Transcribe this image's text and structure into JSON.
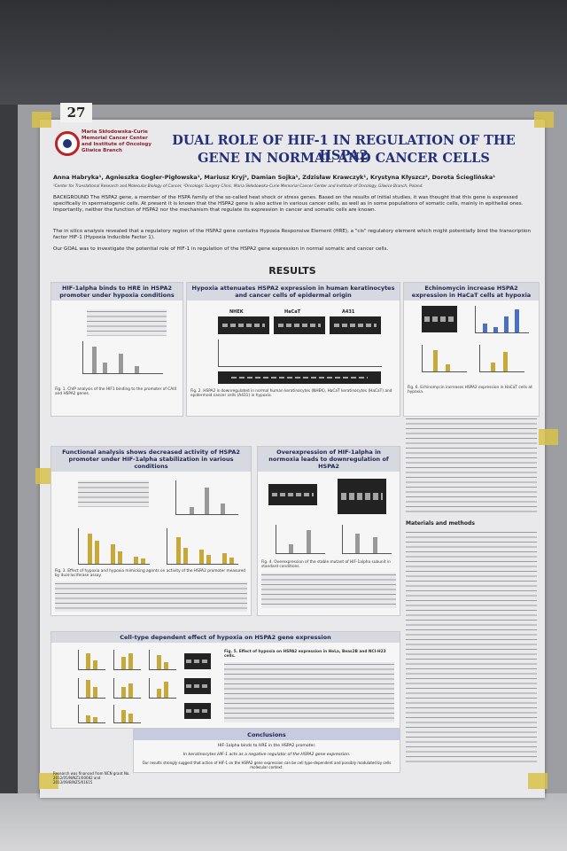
{
  "board_number": "27",
  "header": {
    "institute": "Maria Skłodowska-Curie Memorial Cancer Center and Institute of Oncology Gliwice Branch",
    "title_line1": "DUAL ROLE OF HIF-1 IN REGULATION OF THE HSPA2",
    "title_line2": "GENE IN NORMAL AND CANCER CELLS",
    "authors": "Anna Habryka¹, Agnieszka Gogler-Pigłowska¹, Mariusz Kryj², Damian Sojka¹, Zdzisław Krawczyk¹, Krystyna Kłyszcz², Dorota Ścieglińska¹",
    "affiliations": "¹Center for Translational Research and Molecular Biology of Cancer, ²Oncologic Surgery Clinic, Maria Skłodowska-Curie Memorial Cancer Center and Institute of Oncology, Gliwice Branch, Poland."
  },
  "intro": {
    "background": "BACKGROUND The HSPA2 gene, a member of the HSPA family of the so-called heat shock or stress genes. Based on the results of initial studies, it was thought that this gene is expressed specifically in spermatogenic cells. At present it is known that the HSPA2 gene is also active in various cancer cells, as well as in some populations of somatic cells, mainly in epithelial ones. Importantly, neither the function of HSPA2 nor the mechanism that regulate its expression in cancer and somatic cells are known.",
    "in_silico": "The in silico analysis revealed that a regulatory region of the HSPA2 gene contains Hypoxia Responsive Element (HRE), a \"cis\" regulatory element which might potentially bind the transcription factor HIF-1 (Hypoxia Inducible Factor 1).",
    "goal": "Our GOAL was to investigate the potential role of HIF-1 in regulation of the HSPA2 gene expression in normal somatic and cancer cells."
  },
  "results_heading": "RESULTS",
  "panels": [
    {
      "heading": "HIF-1alpha binds to HRE in HSPA2 promoter under hypoxia conditions",
      "caption": "Fig. 1. ChIP analysis of the HIF1 binding to the promoter of CAIX and HSPA2 genes."
    },
    {
      "heading": "Hypoxia attenuates HSPA2 expression in human keratinocytes and cancer cells of epidermal origin",
      "caption": "Fig. 2. HSPA2 is downregulated in normal human keratinocytes (NHEK), HaCaT keratinocytes (HaCaT) and epidermoid cancer cells (A431) in hypoxia.",
      "columns": [
        "NHEK",
        "HaCaT",
        "A431"
      ]
    },
    {
      "heading": "Echinomycin increase HSPA2 expression in HaCaT cells at hypoxia",
      "caption": "Fig. 6. Echinomycin increases HSPA2 expression in HaCaT cells at hypoxia."
    },
    {
      "heading": "Functional analysis shows decreased activity of HSPA2 promoter under HIF-1alpha stabilization in various conditions",
      "caption": "Fig. 3. Effect of hypoxia and hypoxia mimicking agents on activity of the HSPA2 promoter measured by dual-luciferase assay."
    },
    {
      "heading": "Overexpression of HIF-1alpha in normoxia leads to downregulation of HSPA2",
      "caption": "Fig. 4. Overexpression of the stable mutant of HIF-1alpha subunit in standard conditions."
    },
    {
      "heading": "Cell-type dependent effect of hypoxia on HSPA2 gene expression",
      "caption": "Fig. 5. Effect of hypoxia on HSPA2 expression in HeLa, Beas2B and NCI-H23 cells."
    }
  ],
  "methods_heading": "Materials and methods",
  "conclusions": {
    "heading": "Conclusions",
    "items": [
      "HIF-1alpha binds to HRE in the HSPA2 promoter.",
      "In keratinocytes HIF-1 acts as a negative regulator of the HSPA2 gene expression.",
      "Our results strongly suggest that action of HIF-1 on the HSPA2 gene expression can be cell type-dependent and possibly modulated by cells molecular context."
    ]
  },
  "funding": "Research was financed from NCN grant No. 2012/05/N/NZ1/00682 and 2013/09/B/NZ5/01615"
}
